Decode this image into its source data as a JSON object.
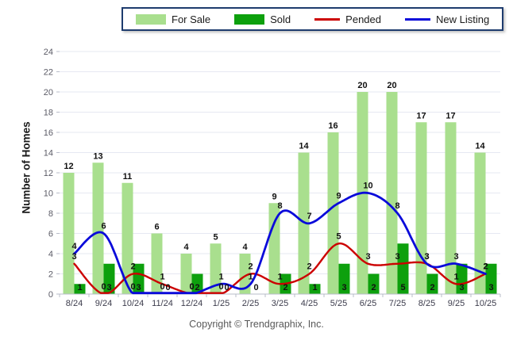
{
  "y_axis_title": "Number of Homes",
  "footer": {
    "copyright": "Copyright © Trendgraphix, Inc."
  },
  "colors": {
    "for_sale": "#A9DF8E",
    "sold": "#0DA00D",
    "pended": "#CC0000",
    "new_listing": "#0A0ADA",
    "grid": "#E6E8F2",
    "axis": "#B9BDC9",
    "tick_label": "#5B5B66",
    "x_label": "#3C3C4C",
    "data_label": "#111111"
  },
  "chart_data": {
    "type": "bar+line combo",
    "title": "",
    "xlabel": "",
    "ylabel": "Number of Homes",
    "ylim": [
      0,
      24
    ],
    "ytick_step": 2,
    "grid": true,
    "legend_position": "top-center",
    "categories": [
      "8/24",
      "9/24",
      "10/24",
      "11/24",
      "12/24",
      "1/25",
      "2/25",
      "3/25",
      "4/25",
      "5/25",
      "6/25",
      "7/25",
      "8/25",
      "9/25",
      "10/25"
    ],
    "series": [
      {
        "name": "For Sale",
        "type": "bar",
        "color": "#A9DF8E",
        "values": [
          12,
          13,
          11,
          6,
          4,
          5,
          4,
          9,
          14,
          16,
          20,
          20,
          17,
          17,
          14
        ]
      },
      {
        "name": "Sold",
        "type": "bar",
        "color": "#0DA00D",
        "values": [
          1,
          3,
          3,
          0,
          2,
          0,
          0,
          2,
          1,
          3,
          2,
          5,
          2,
          3,
          3
        ]
      },
      {
        "name": "Pended",
        "type": "line",
        "color": "#CC0000",
        "values": [
          3,
          0,
          2,
          1,
          0,
          0,
          2,
          1,
          2,
          5,
          3,
          3,
          3,
          1,
          2
        ]
      },
      {
        "name": "New Listing",
        "type": "line",
        "color": "#0A0ADA",
        "values": [
          4,
          6,
          0,
          0,
          0,
          1,
          1,
          8,
          7,
          9,
          10,
          8,
          3,
          3,
          2
        ]
      }
    ]
  }
}
